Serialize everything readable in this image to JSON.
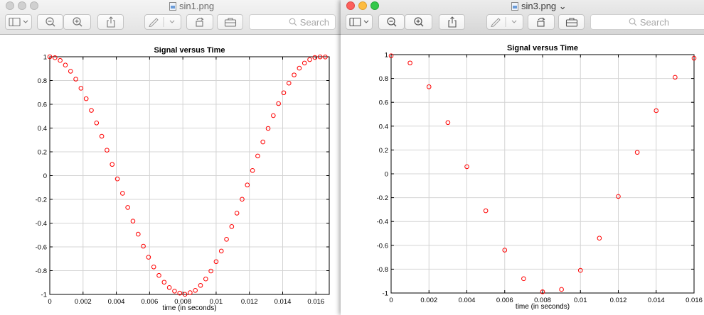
{
  "windows": [
    {
      "id": "win1",
      "title": "sin1.png",
      "active": false,
      "search_placeholder": "Search"
    },
    {
      "id": "win2",
      "title": "sin3.png ⌄",
      "active": true,
      "search_placeholder": "Search"
    }
  ],
  "colors": {
    "marker": "#ff0000",
    "grid": "#d4d4d4",
    "close": "#fc605c",
    "minimize": "#fdbc40",
    "maximize": "#34c84a"
  },
  "toolbar_icons": [
    "sidebar-icon",
    "chevron-down-icon",
    "zoom-out-icon",
    "zoom-in-icon",
    "share-icon",
    "markup-pen-icon",
    "rotate-icon",
    "toolbox-icon",
    "search-icon"
  ],
  "chart_data": [
    {
      "type": "scatter",
      "title": "Signal versus Time",
      "xlabel": "time (in seconds)",
      "ylabel": "",
      "xlim": [
        0,
        0.0168
      ],
      "ylim": [
        -1,
        1
      ],
      "grid": true,
      "x_ticks": [
        "0",
        "0.002",
        "0.004",
        "0.006",
        "0.008",
        "0.01",
        "0.012",
        "0.014",
        "0.016"
      ],
      "x_tick_values": [
        0,
        0.002,
        0.004,
        0.006,
        0.008,
        0.01,
        0.012,
        0.014,
        0.016
      ],
      "y_ticks": [
        "1",
        "0.8",
        "0.6",
        "0.4",
        "0.2",
        "0",
        "-0.2",
        "-0.4",
        "-0.6",
        "-0.8",
        "-1"
      ],
      "y_tick_values": [
        1,
        0.8,
        0.6,
        0.4,
        0.2,
        0,
        -0.2,
        -0.4,
        -0.6,
        -0.8,
        -1
      ],
      "marker": "circle",
      "series": [
        {
          "x": [
            0,
            0.0003125,
            0.000625,
            0.0009375,
            0.00125,
            0.0015625,
            0.001875,
            0.0021875,
            0.0025,
            0.0028125,
            0.003125,
            0.0034375,
            0.00375,
            0.0040625,
            0.004375,
            0.0046875,
            0.005,
            0.0053125,
            0.005625,
            0.0059375,
            0.00625,
            0.0065625,
            0.006875,
            0.0071875,
            0.0075,
            0.0078125,
            0.008125,
            0.0084375,
            0.00875,
            0.0090625,
            0.009375,
            0.0096875,
            0.01,
            0.0103125,
            0.010625,
            0.0109375,
            0.01125,
            0.0115625,
            0.011875,
            0.0121875,
            0.0125,
            0.0128125,
            0.013125,
            0.0134375,
            0.01375,
            0.0140625,
            0.014375,
            0.0146875,
            0.015,
            0.0153125,
            0.015625,
            0.0159375,
            0.01625,
            0.0165625
          ],
          "y": [
            1.0,
            0.992,
            0.969,
            0.93,
            0.878,
            0.812,
            0.735,
            0.647,
            0.549,
            0.443,
            0.331,
            0.214,
            0.094,
            -0.028,
            -0.149,
            -0.268,
            -0.383,
            -0.493,
            -0.594,
            -0.687,
            -0.769,
            -0.84,
            -0.897,
            -0.942,
            -0.972,
            -0.989,
            -0.999,
            -0.985,
            -0.966,
            -0.924,
            -0.87,
            -0.803,
            -0.724,
            -0.635,
            -0.536,
            -0.429,
            -0.316,
            -0.199,
            -0.079,
            0.043,
            0.165,
            0.283,
            0.397,
            0.505,
            0.606,
            0.697,
            0.778,
            0.847,
            0.904,
            0.947,
            0.976,
            0.994,
            0.999,
            0.998
          ]
        }
      ]
    },
    {
      "type": "scatter",
      "title": "Signal versus Time",
      "xlabel": "time (in seconds)",
      "ylabel": "",
      "xlim": [
        0,
        0.016
      ],
      "ylim": [
        -1,
        1
      ],
      "grid": true,
      "x_ticks": [
        "0",
        "0.002",
        "0.004",
        "0.006",
        "0.008",
        "0.01",
        "0.012",
        "0.014",
        "0.016"
      ],
      "x_tick_values": [
        0,
        0.002,
        0.004,
        0.006,
        0.008,
        0.01,
        0.012,
        0.014,
        0.016
      ],
      "y_ticks": [
        "1",
        "0.8",
        "0.6",
        "0.4",
        "0.2",
        "0",
        "-0.2",
        "-0.4",
        "-0.6",
        "-0.8",
        "-1"
      ],
      "y_tick_values": [
        1,
        0.8,
        0.6,
        0.4,
        0.2,
        0,
        -0.2,
        -0.4,
        -0.6,
        -0.8,
        -1
      ],
      "marker": "circle",
      "series": [
        {
          "x": [
            0,
            0.001,
            0.002,
            0.003,
            0.004,
            0.005,
            0.006,
            0.007,
            0.008,
            0.009,
            0.01,
            0.011,
            0.012,
            0.013,
            0.014,
            0.015,
            0.016
          ],
          "y": [
            0.99,
            0.93,
            0.73,
            0.43,
            0.06,
            -0.31,
            -0.64,
            -0.88,
            -0.99,
            -0.97,
            -0.81,
            -0.54,
            -0.19,
            0.18,
            0.53,
            0.81,
            0.97
          ]
        }
      ]
    }
  ]
}
